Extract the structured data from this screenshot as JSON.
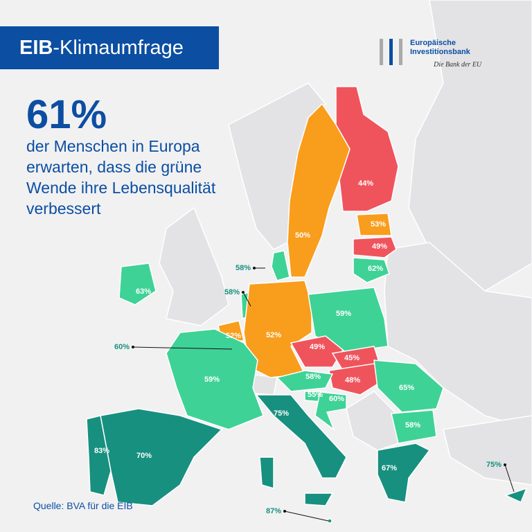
{
  "header": {
    "title_bold": "EIB",
    "title_rest": "-Klimaumfrage"
  },
  "logo": {
    "line1": "Europäische",
    "line2": "Investitionsbank",
    "tagline": "Die Bank der EU"
  },
  "headline": {
    "big": "61%",
    "text_lines": [
      "der Menschen in Europa",
      "erwarten, dass die grüne",
      "Wende ihre Lebensqualität",
      "verbessert"
    ]
  },
  "map": {
    "labels": [
      "44%",
      "50%",
      "53%",
      "49%",
      "62%",
      "58%",
      "63%",
      "58%",
      "59%",
      "60%",
      "52%",
      "52%",
      "49%",
      "45%",
      "59%",
      "58%",
      "48%",
      "55%",
      "60%",
      "65%",
      "58%",
      "75%",
      "83%",
      "70%",
      "67%",
      "75%",
      "87%"
    ]
  },
  "source": "Quelle: BVA für die EIB"
}
